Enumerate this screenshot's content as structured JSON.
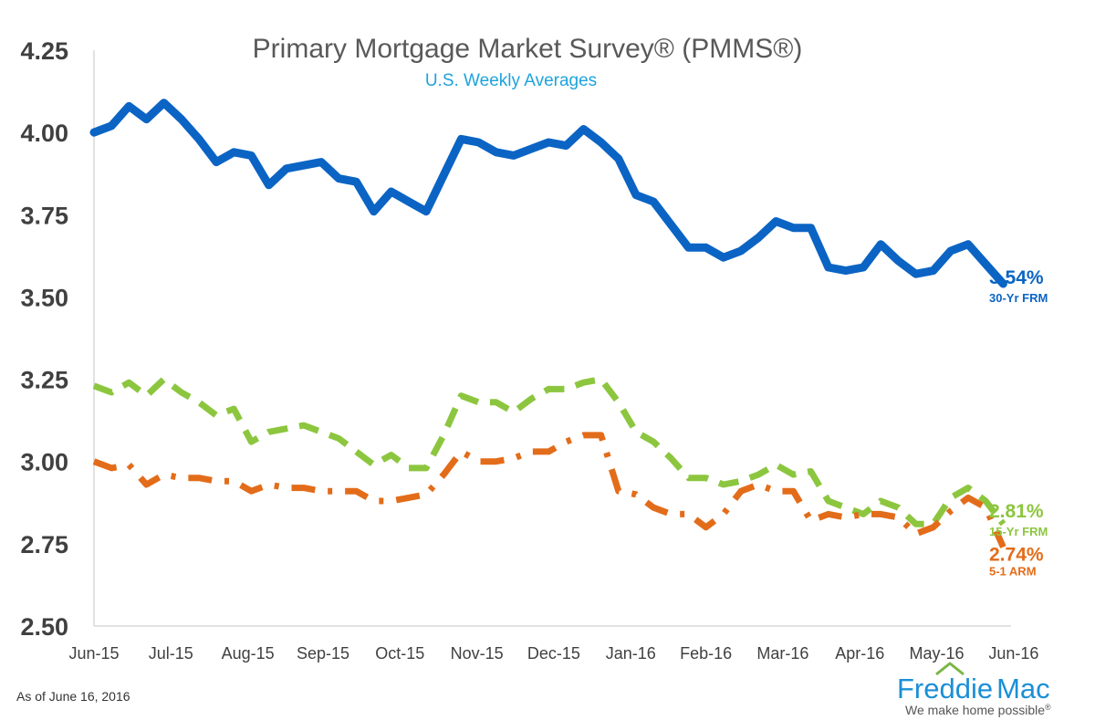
{
  "chart_data": {
    "type": "line",
    "title": "Primary Mortgage Market Survey® (PMMS®)",
    "subtitle": "U.S. Weekly Averages",
    "xlabel": "",
    "ylabel": "",
    "ylim": [
      2.5,
      4.25
    ],
    "yticks": [
      "2.50",
      "2.75",
      "3.00",
      "3.25",
      "3.50",
      "3.75",
      "4.00",
      "4.25"
    ],
    "ytick_values": [
      2.5,
      2.75,
      3.0,
      3.25,
      3.5,
      3.75,
      4.0,
      4.25
    ],
    "xlim": [
      0,
      54
    ],
    "x_categories": [
      "Jun-15",
      "Jul-15",
      "Aug-15",
      "Sep-15",
      "Oct-15",
      "Nov-15",
      "Dec-15",
      "Jan-16",
      "Feb-16",
      "Mar-16",
      "Apr-16",
      "May-16",
      "Jun-16"
    ],
    "x_positions": [
      0,
      4.4,
      8.8,
      13.1,
      17.5,
      21.9,
      26.3,
      30.7,
      35.0,
      39.4,
      43.8,
      48.2,
      52.6
    ],
    "grid": false,
    "series": [
      {
        "name": "30-Yr FRM",
        "style": "solid",
        "color": "#0b64c4",
        "x": [
          0,
          1,
          2,
          3,
          4,
          5,
          6,
          7,
          8,
          9,
          10,
          11,
          12,
          13,
          14,
          15,
          16,
          17,
          18,
          19,
          20,
          21,
          22,
          23,
          24,
          25,
          26,
          27,
          28,
          29,
          30,
          31,
          32,
          33,
          34,
          35,
          36,
          37,
          38,
          39,
          40,
          41,
          42,
          43,
          44,
          45,
          46,
          47,
          48,
          49,
          50,
          51,
          52
        ],
        "values": [
          4.0,
          4.02,
          4.08,
          4.04,
          4.09,
          4.04,
          3.98,
          3.91,
          3.94,
          3.93,
          3.84,
          3.89,
          3.9,
          3.91,
          3.86,
          3.85,
          3.76,
          3.82,
          3.79,
          3.76,
          3.87,
          3.98,
          3.97,
          3.94,
          3.93,
          3.95,
          3.97,
          3.96,
          4.01,
          3.97,
          3.92,
          3.81,
          3.79,
          3.72,
          3.65,
          3.65,
          3.62,
          3.64,
          3.68,
          3.73,
          3.71,
          3.71,
          3.59,
          3.58,
          3.59,
          3.66,
          3.61,
          3.57,
          3.58,
          3.64,
          3.66,
          3.6,
          3.54
        ],
        "end_label": "3.54%",
        "end_name": "30-Yr FRM"
      },
      {
        "name": "15-Yr FRM",
        "style": "dashed",
        "color": "#8cc63f",
        "x": [
          0,
          1,
          2,
          3,
          4,
          5,
          6,
          7,
          8,
          9,
          10,
          11,
          12,
          13,
          14,
          15,
          16,
          17,
          18,
          19,
          20,
          21,
          22,
          23,
          24,
          25,
          26,
          27,
          28,
          29,
          30,
          31,
          32,
          33,
          34,
          35,
          36,
          37,
          38,
          39,
          40,
          41,
          42,
          43,
          44,
          45,
          46,
          47,
          48,
          49,
          50,
          51,
          52
        ],
        "values": [
          3.23,
          3.21,
          3.24,
          3.2,
          3.25,
          3.21,
          3.18,
          3.14,
          3.16,
          3.06,
          3.09,
          3.1,
          3.11,
          3.09,
          3.07,
          3.03,
          2.99,
          3.02,
          2.98,
          2.98,
          3.08,
          3.2,
          3.18,
          3.18,
          3.15,
          3.19,
          3.22,
          3.22,
          3.24,
          3.25,
          3.18,
          3.09,
          3.06,
          3.01,
          2.95,
          2.95,
          2.93,
          2.94,
          2.96,
          2.99,
          2.96,
          2.97,
          2.88,
          2.86,
          2.84,
          2.88,
          2.86,
          2.81,
          2.81,
          2.89,
          2.92,
          2.88,
          2.81
        ],
        "end_label": "2.81%",
        "end_name": "15-Yr FRM"
      },
      {
        "name": "5-1 ARM",
        "style": "dashdot",
        "color": "#e36c1a",
        "x": [
          0,
          1,
          2,
          3,
          4,
          5,
          6,
          7,
          8,
          9,
          10,
          11,
          12,
          13,
          14,
          15,
          16,
          17,
          18,
          19,
          20,
          21,
          22,
          23,
          24,
          25,
          26,
          27,
          28,
          29,
          30,
          31,
          32,
          33,
          34,
          35,
          36,
          37,
          38,
          39,
          40,
          41,
          42,
          43,
          44,
          45,
          46,
          47,
          48,
          49,
          50,
          51,
          52
        ],
        "values": [
          3.0,
          2.98,
          2.99,
          2.93,
          2.96,
          2.95,
          2.95,
          2.94,
          2.94,
          2.91,
          2.93,
          2.92,
          2.92,
          2.91,
          2.91,
          2.91,
          2.88,
          2.88,
          2.89,
          2.9,
          2.96,
          3.03,
          3.0,
          3.0,
          3.01,
          3.03,
          3.03,
          3.06,
          3.08,
          3.08,
          2.91,
          2.9,
          2.86,
          2.84,
          2.84,
          2.8,
          2.84,
          2.91,
          2.93,
          2.91,
          2.91,
          2.82,
          2.84,
          2.83,
          2.84,
          2.84,
          2.83,
          2.78,
          2.8,
          2.85,
          2.89,
          2.86,
          2.74
        ],
        "end_label": "2.74%",
        "end_name": "5-1 ARM"
      }
    ]
  },
  "footer": {
    "as_of": "As of June 16, 2016",
    "brand_a": "Freddie",
    "brand_b": "Mac",
    "tagline": "We make home possible",
    "tagline_mark": "®"
  },
  "colors": {
    "axis": "#d9d9d9",
    "brand": "#1b8fd6",
    "roof": "#7ab648"
  }
}
